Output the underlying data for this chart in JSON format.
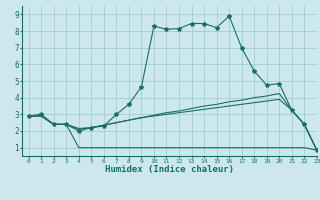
{
  "xlabel": "Humidex (Indice chaleur)",
  "bg_color": "#cde8ec",
  "grid_color": "#a0cdd4",
  "line_color": "#1a6b6b",
  "xlim": [
    -0.5,
    23
  ],
  "ylim": [
    0.5,
    9.5
  ],
  "xticks": [
    0,
    1,
    2,
    3,
    4,
    5,
    6,
    7,
    8,
    9,
    10,
    11,
    12,
    13,
    14,
    15,
    16,
    17,
    18,
    19,
    20,
    21,
    22,
    23
  ],
  "yticks": [
    1,
    2,
    3,
    4,
    5,
    6,
    7,
    8,
    9
  ],
  "lines": [
    {
      "x": [
        0,
        1,
        2,
        3,
        4,
        5,
        6,
        7,
        8,
        9,
        10,
        11,
        12,
        13,
        14,
        15,
        16,
        17,
        18,
        19,
        20,
        21,
        22,
        23
      ],
      "y": [
        2.9,
        3.0,
        2.4,
        2.4,
        2.0,
        2.2,
        2.3,
        3.0,
        3.6,
        4.65,
        8.3,
        8.1,
        8.15,
        8.45,
        8.45,
        8.2,
        8.9,
        7.0,
        5.6,
        4.75,
        4.85,
        3.25,
        2.4,
        0.85
      ],
      "marker": true
    },
    {
      "x": [
        0,
        1,
        2,
        3,
        4,
        5,
        6,
        7,
        8,
        9,
        10,
        11,
        12,
        13,
        14,
        15,
        16,
        17,
        18,
        19,
        20,
        21,
        22,
        23
      ],
      "y": [
        2.9,
        2.9,
        2.4,
        2.4,
        2.15,
        2.2,
        2.35,
        2.5,
        2.65,
        2.8,
        2.95,
        3.1,
        3.2,
        3.35,
        3.5,
        3.6,
        3.75,
        3.85,
        4.0,
        4.1,
        4.25,
        3.25,
        2.4,
        0.85
      ],
      "marker": false
    },
    {
      "x": [
        0,
        1,
        2,
        3,
        4,
        5,
        6,
        7,
        8,
        9,
        10,
        11,
        12,
        13,
        14,
        15,
        16,
        17,
        18,
        19,
        20,
        21,
        22,
        23
      ],
      "y": [
        2.9,
        2.9,
        2.4,
        2.4,
        1.0,
        1.0,
        1.0,
        1.0,
        1.0,
        1.0,
        1.0,
        1.0,
        1.0,
        1.0,
        1.0,
        1.0,
        1.0,
        1.0,
        1.0,
        1.0,
        1.0,
        1.0,
        1.0,
        0.85
      ],
      "marker": false
    },
    {
      "x": [
        0,
        1,
        2,
        3,
        4,
        5,
        6,
        7,
        8,
        9,
        10,
        11,
        12,
        13,
        14,
        15,
        16,
        17,
        18,
        19,
        20,
        21,
        22,
        23
      ],
      "y": [
        2.9,
        2.9,
        2.4,
        2.4,
        2.1,
        2.2,
        2.35,
        2.5,
        2.65,
        2.8,
        2.9,
        3.0,
        3.1,
        3.2,
        3.3,
        3.4,
        3.5,
        3.6,
        3.7,
        3.8,
        3.9,
        3.25,
        2.4,
        0.85
      ],
      "marker": false
    }
  ]
}
